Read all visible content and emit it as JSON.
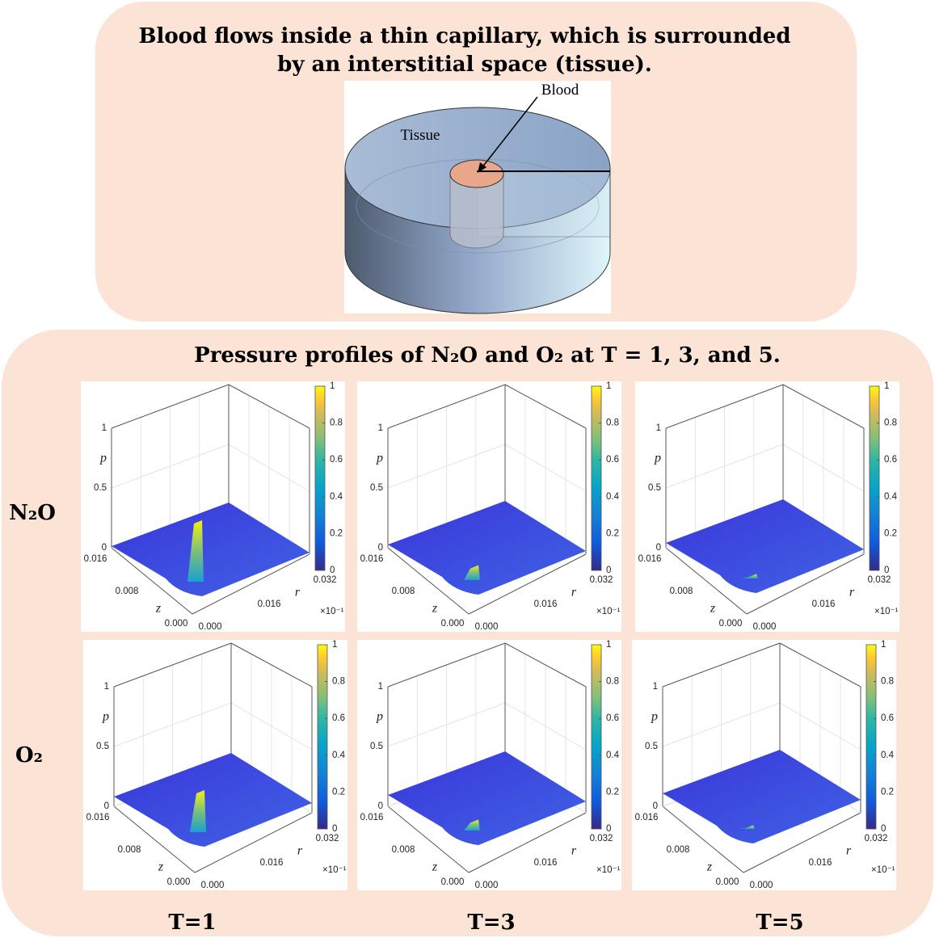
{
  "header": {
    "title_lines": [
      "Blood flows inside a thin capillary, which is surrounded",
      "by an interstitial space (tissue)."
    ]
  },
  "diagram": {
    "labels": {
      "blood": "Blood",
      "tissue": "Tissue"
    }
  },
  "results": {
    "title": "Pressure profiles of N₂O and O₂ at T = 1, 3, and 5.",
    "rows": [
      "N₂O",
      "O₂"
    ],
    "columns": [
      "T=1",
      "T=3",
      "T=5"
    ],
    "axes": {
      "p_label": "p",
      "z_label": "z",
      "r_label": "r",
      "p_ticks": [
        "0",
        "0.5",
        "1"
      ],
      "z_ticks": [
        "0.000",
        "0.008",
        "0.016"
      ],
      "r_ticks": [
        "0.000",
        "0.016",
        "0.032"
      ],
      "scale_note": "×10⁻¹",
      "colorbar_ticks": [
        "0",
        "0.2",
        "0.4",
        "0.6",
        "0.8",
        "1"
      ]
    }
  }
}
